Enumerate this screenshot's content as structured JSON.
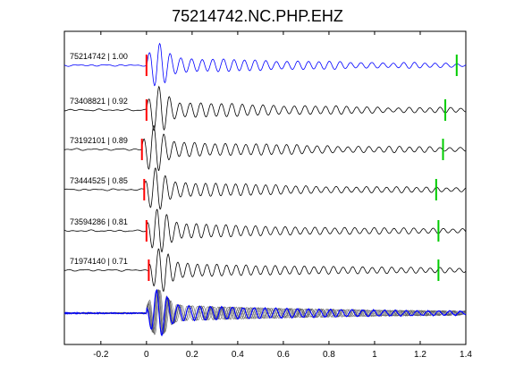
{
  "chart_data": {
    "type": "line",
    "title": "75214742.NC.PHP.EHZ",
    "xlabel": "",
    "ylabel": "",
    "xlim": [
      -0.36,
      1.4
    ],
    "xticks": [
      -0.2,
      0,
      0.2,
      0.4,
      0.6,
      0.8,
      1,
      1.2,
      1.4
    ],
    "xtick_labels": [
      "-0.2",
      "0",
      "0.2",
      "0.4",
      "0.6",
      "0.8",
      "1",
      "1.2",
      "1.4"
    ],
    "grid": false,
    "traces": [
      {
        "label": "75214742 | 1.00",
        "color": "#0000ff",
        "p_pick": 0.0,
        "s_pick": 1.36
      },
      {
        "label": "73408821 | 0.92",
        "color": "#000000",
        "p_pick": 0.0,
        "s_pick": 1.31
      },
      {
        "label": "73192101 | 0.89",
        "color": "#000000",
        "p_pick": -0.02,
        "s_pick": 1.3
      },
      {
        "label": "73444525 | 0.85",
        "color": "#000000",
        "p_pick": -0.01,
        "s_pick": 1.27
      },
      {
        "label": "73594286 | 0.81",
        "color": "#000000",
        "p_pick": 0.0,
        "s_pick": 1.28
      },
      {
        "label": "71974140 | 0.71",
        "color": "#000000",
        "p_pick": 0.01,
        "s_pick": 1.28
      }
    ],
    "stack": {
      "colors": [
        "#555555",
        "#0000ff"
      ]
    },
    "pick_colors": {
      "p": "#ff0000",
      "s": "#00cc00"
    }
  }
}
